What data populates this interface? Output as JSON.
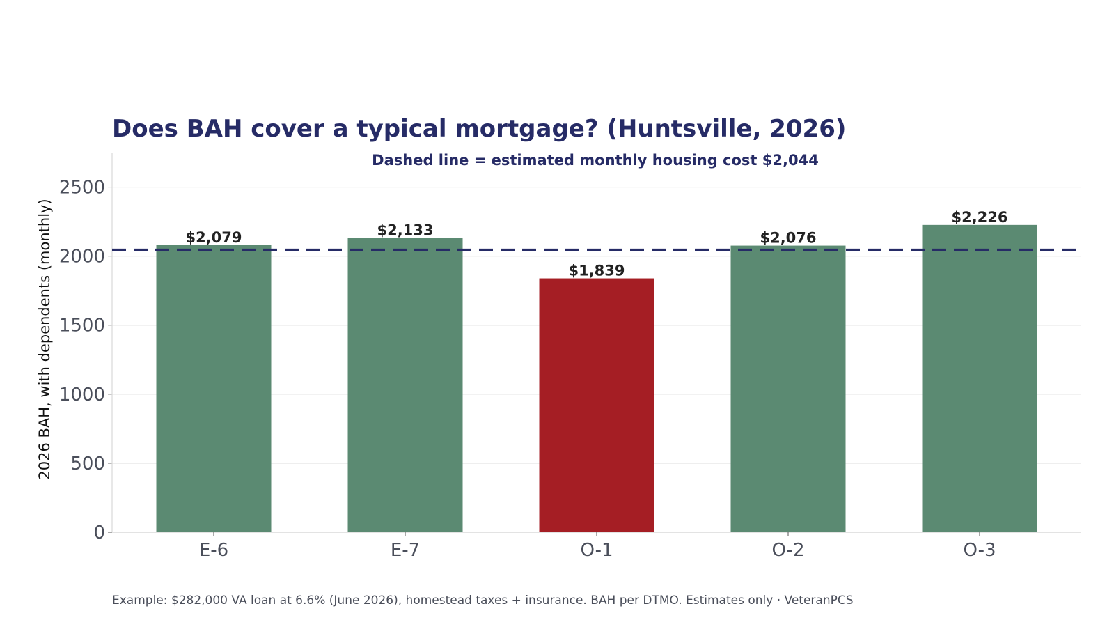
{
  "chart_data": {
    "type": "bar",
    "title": "Does BAH cover a typical mortgage? (Huntsville, 2026)",
    "subtitle": "Dashed line = estimated monthly housing cost  $2,044",
    "xlabel": "",
    "ylabel": "2026 BAH, with dependents (monthly)",
    "categories": [
      "E-6",
      "E-7",
      "O-1",
      "O-2",
      "O-3"
    ],
    "values": [
      2079,
      2133,
      1839,
      2076,
      2226
    ],
    "value_labels": [
      "$2,079",
      "$2,133",
      "$1,839",
      "$2,076",
      "$2,226"
    ],
    "bar_colors": [
      "#5b8a72",
      "#5b8a72",
      "#a51e24",
      "#5b8a72",
      "#5b8a72"
    ],
    "reference_line": {
      "value": 2044,
      "style": "dashed",
      "color": "#262b66"
    },
    "ylim": [
      0,
      2750
    ],
    "yticks": [
      0,
      500,
      1000,
      1500,
      2000,
      2500
    ],
    "grid": true,
    "footnote": "Example: $282,000 VA loan at 6.6% (June 2026), homestead taxes + insurance. BAH per DTMO. Estimates only · VeteranPCS"
  }
}
